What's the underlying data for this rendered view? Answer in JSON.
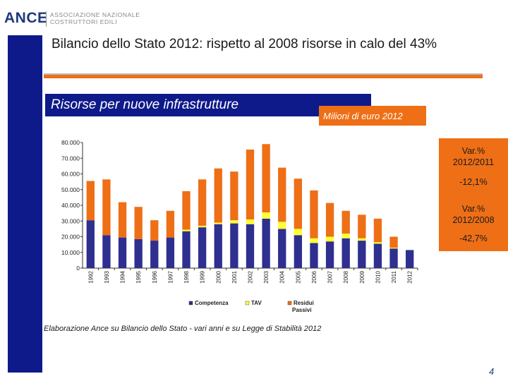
{
  "logo": {
    "name": "ANCE",
    "sub1": "ASSOCIAZIONE NAZIONALE",
    "sub2": "COSTRUTTORI EDILI"
  },
  "title": "Bilancio dello Stato 2012: rispetto al 2008 risorse in calo del 43%",
  "subtitle": "Risorse per nuove infrastrutture",
  "unit": "Milioni di euro 2012",
  "variations": {
    "v1_label1": "Var.%",
    "v1_label2": "2012/2011",
    "v1_value": "-12,1%",
    "v2_label1": "Var.%",
    "v2_label2": "2012/2008",
    "v2_value": "-42,7%"
  },
  "source": "Elaborazione Ance su Bilancio dello Stato - vari anni e su Legge di Stabilità 2012",
  "page_number": "4",
  "colors": {
    "brand_blue": "#0e1a8a",
    "accent_orange": "#ee6f16",
    "competenza": "#2e2f8f",
    "tav": "#ffff33",
    "residui": "#ee6f16"
  },
  "chart_data": {
    "type": "bar",
    "stacked": true,
    "categories": [
      "1992",
      "1993",
      "1994",
      "1995",
      "1996",
      "1997",
      "1998",
      "1999",
      "2000",
      "2001",
      "2002",
      "2003",
      "2004",
      "2005",
      "2006",
      "2007",
      "2008",
      "2009",
      "2010",
      "2011",
      "2012"
    ],
    "series": [
      {
        "name": "Competenza",
        "values": [
          30500,
          21000,
          19500,
          18500,
          17500,
          19500,
          23500,
          26000,
          28000,
          28500,
          28000,
          31500,
          25000,
          21000,
          16000,
          17000,
          19000,
          17500,
          15500,
          12500,
          11500
        ]
      },
      {
        "name": "TAV",
        "values": [
          0,
          0,
          0,
          0,
          0,
          0,
          1000,
          1000,
          1000,
          2000,
          3000,
          4000,
          4500,
          4000,
          3000,
          3000,
          3000,
          1500,
          1000,
          500,
          0
        ]
      },
      {
        "name": "Residui Passivi",
        "values": [
          25000,
          35500,
          22500,
          20500,
          13000,
          17000,
          24500,
          29500,
          34500,
          31000,
          44500,
          43500,
          34500,
          32000,
          30500,
          21500,
          14500,
          15000,
          15000,
          7000,
          0
        ]
      }
    ],
    "ylim": [
      0,
      80000
    ],
    "yticks": [
      "0",
      "10.000",
      "20.000",
      "30.000",
      "40.000",
      "50.000",
      "60.000",
      "70.000",
      "80.000"
    ],
    "grid": false,
    "legend": "bottom"
  }
}
